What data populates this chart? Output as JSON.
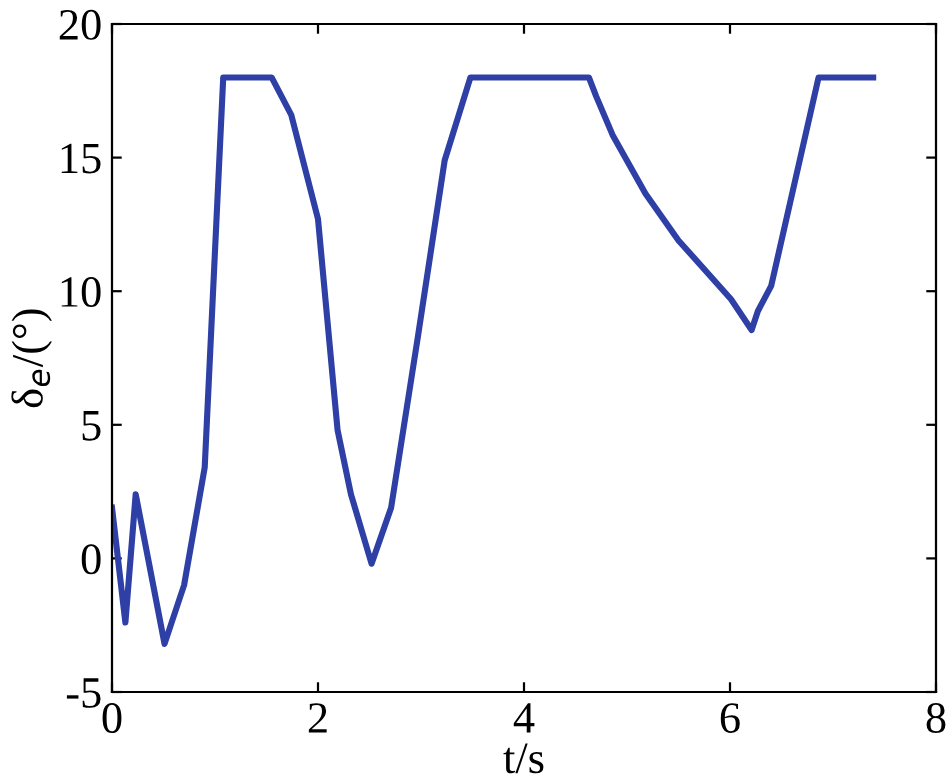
{
  "chart_data": {
    "type": "line",
    "xlabel": "t/s",
    "ylabel": "δ$_{e}$/(°)",
    "xlim": [
      0,
      8
    ],
    "ylim": [
      -5,
      20
    ],
    "xticks": [
      0,
      2,
      4,
      6,
      8
    ],
    "yticks": [
      -5,
      0,
      5,
      10,
      15,
      20
    ],
    "grid": false,
    "marker": "none",
    "line_style": "solid",
    "series": [
      {
        "color": "#2e3fa6",
        "x": [
          0.0,
          0.13,
          0.23,
          0.51,
          0.7,
          0.9,
          1.08,
          1.55,
          1.74,
          2.0,
          2.19,
          2.32,
          2.52,
          2.71,
          2.97,
          3.23,
          3.48,
          4.63,
          4.7,
          4.86,
          5.18,
          5.5,
          6.01,
          6.21,
          6.27,
          6.4,
          6.86,
          7.39
        ],
        "values": [
          1.9,
          -2.4,
          2.4,
          -3.2,
          -1.0,
          3.4,
          18,
          18,
          16.6,
          12.7,
          4.8,
          2.4,
          -0.2,
          1.9,
          8.3,
          14.9,
          18,
          18,
          17.3,
          15.85,
          13.65,
          11.9,
          9.7,
          8.55,
          9.25,
          10.2,
          18,
          18
        ]
      }
    ]
  }
}
